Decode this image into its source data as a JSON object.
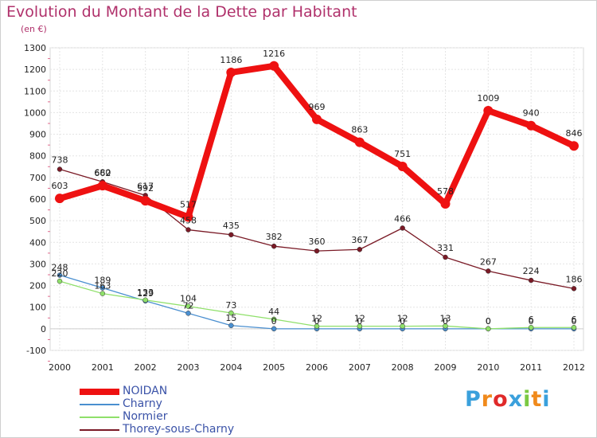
{
  "header": {
    "title": "Evolution du Montant de la Dette par Habitant",
    "subtitle": "(en €)"
  },
  "logo": {
    "text": "Proxiti",
    "colors": [
      "#3aa0dc",
      "#f08a1c",
      "#e02a2a",
      "#3aa0dc",
      "#7ac943",
      "#f08a1c",
      "#3aa0dc"
    ]
  },
  "chart_data": {
    "type": "line",
    "x": [
      "2000",
      "2001",
      "2002",
      "2003",
      "2004",
      "2005",
      "2006",
      "2007",
      "2008",
      "2009",
      "2010",
      "2011",
      "2012"
    ],
    "ylim": [
      -100,
      1300
    ],
    "yticks": [
      -100,
      0,
      100,
      200,
      300,
      400,
      500,
      600,
      700,
      800,
      900,
      1000,
      1100,
      1200,
      1300
    ],
    "grid": true,
    "legend_position": "bottom-left",
    "series": [
      {
        "name": "NOIDAN",
        "color": "#ee1111",
        "values": [
          603,
          662,
          592,
          517,
          1186,
          1216,
          969,
          863,
          751,
          578,
          1009,
          940,
          846
        ]
      },
      {
        "name": "Charny",
        "color": "#4a8fd0",
        "values": [
          248,
          189,
          129,
          72,
          15,
          0,
          0,
          0,
          0,
          0,
          0,
          0,
          0
        ]
      },
      {
        "name": "Normier",
        "color": "#8fe06a",
        "values": [
          220,
          163,
          133,
          104,
          73,
          44,
          12,
          12,
          12,
          13,
          0,
          6,
          6
        ]
      },
      {
        "name": "Thorey-sous-Charny",
        "color": "#7a1a26",
        "values": [
          738,
          680,
          617,
          458,
          435,
          382,
          360,
          367,
          466,
          331,
          267,
          224,
          186
        ]
      }
    ]
  }
}
